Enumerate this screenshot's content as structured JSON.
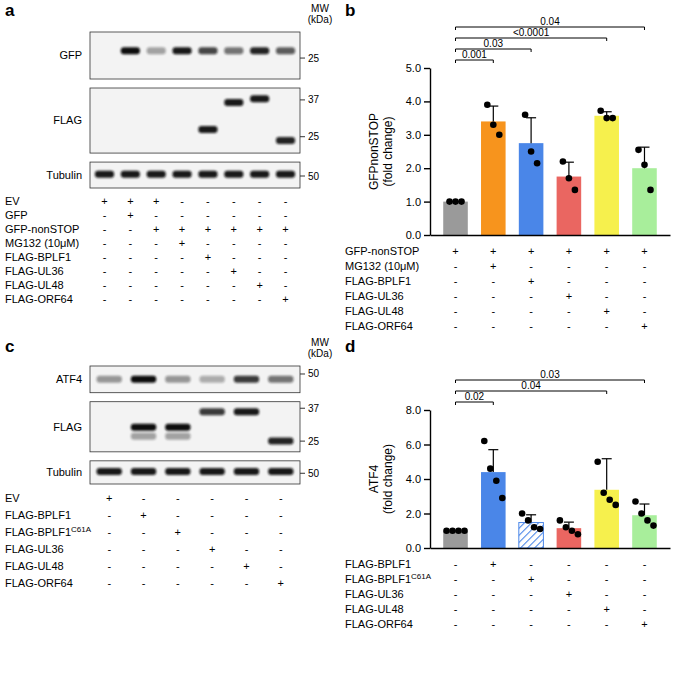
{
  "blots": [
    {
      "title": "a",
      "mw_label": [
        "MW",
        "(kDa)"
      ],
      "strips": [
        {
          "label": "GFP",
          "mw_range": [
            20,
            33
          ],
          "markers": [
            25
          ],
          "bands": [
            {
              "lane": 1,
              "mw": 27,
              "intensity": 1.0
            },
            {
              "lane": 2,
              "mw": 27,
              "intensity": 0.35
            },
            {
              "lane": 3,
              "mw": 27,
              "intensity": 0.95
            },
            {
              "lane": 4,
              "mw": 27,
              "intensity": 0.75
            },
            {
              "lane": 5,
              "mw": 27,
              "intensity": 0.55
            },
            {
              "lane": 6,
              "mw": 27,
              "intensity": 0.9
            },
            {
              "lane": 7,
              "mw": 27,
              "intensity": 0.65
            }
          ]
        },
        {
          "label": "FLAG",
          "mw_range": [
            21,
            42
          ],
          "markers": [
            37,
            25
          ],
          "bands": [
            {
              "lane": 4,
              "mw": 27,
              "intensity": 0.95
            },
            {
              "lane": 5,
              "mw": 36,
              "intensity": 0.95
            },
            {
              "lane": 6,
              "mw": 37.5,
              "intensity": 0.95
            },
            {
              "lane": 7,
              "mw": 24,
              "intensity": 0.9
            }
          ]
        },
        {
          "label": "Tubulin",
          "mw_range": [
            44,
            58
          ],
          "markers": [
            50
          ],
          "bands": [
            {
              "lane": 0,
              "mw": 51,
              "intensity": 0.95
            },
            {
              "lane": 1,
              "mw": 51,
              "intensity": 0.95
            },
            {
              "lane": 2,
              "mw": 51,
              "intensity": 0.95
            },
            {
              "lane": 3,
              "mw": 51,
              "intensity": 0.95
            },
            {
              "lane": 4,
              "mw": 51,
              "intensity": 0.95
            },
            {
              "lane": 5,
              "mw": 51,
              "intensity": 0.95
            },
            {
              "lane": 6,
              "mw": 51,
              "intensity": 0.95
            },
            {
              "lane": 7,
              "mw": 51,
              "intensity": 0.95
            }
          ]
        }
      ],
      "conditions": [
        {
          "label": "EV",
          "signs": [
            "+",
            "+",
            "+",
            "-",
            "-",
            "-",
            "-",
            "-"
          ]
        },
        {
          "label": "GFP",
          "signs": [
            "-",
            "+",
            "-",
            "-",
            "-",
            "-",
            "-",
            "-"
          ]
        },
        {
          "label": "GFP-nonSTOP",
          "signs": [
            "-",
            "-",
            "+",
            "+",
            "+",
            "+",
            "+",
            "+"
          ]
        },
        {
          "label": "MG132 (10μM)",
          "signs": [
            "-",
            "-",
            "-",
            "+",
            "-",
            "-",
            "-",
            "-"
          ]
        },
        {
          "label": "FLAG-BPLF1",
          "signs": [
            "-",
            "-",
            "-",
            "-",
            "+",
            "-",
            "-",
            "-"
          ]
        },
        {
          "label": "FLAG-UL36",
          "signs": [
            "-",
            "-",
            "-",
            "-",
            "-",
            "+",
            "-",
            "-"
          ]
        },
        {
          "label": "FLAG-UL48",
          "signs": [
            "-",
            "-",
            "-",
            "-",
            "-",
            "-",
            "+",
            "-"
          ]
        },
        {
          "label": "FLAG-ORF64",
          "signs": [
            "-",
            "-",
            "-",
            "-",
            "-",
            "-",
            "-",
            "+"
          ]
        }
      ]
    },
    {
      "title": "c",
      "mw_label": [
        "MW",
        "(kDa)"
      ],
      "strips": [
        {
          "label": "ATF4",
          "mw_range": [
            40,
            55
          ],
          "markers": [
            50
          ],
          "bands": [
            {
              "lane": 0,
              "mw": 47,
              "intensity": 0.4
            },
            {
              "lane": 1,
              "mw": 47,
              "intensity": 1.0
            },
            {
              "lane": 2,
              "mw": 47,
              "intensity": 0.4
            },
            {
              "lane": 3,
              "mw": 47,
              "intensity": 0.3
            },
            {
              "lane": 4,
              "mw": 47,
              "intensity": 0.8
            },
            {
              "lane": 5,
              "mw": 47,
              "intensity": 0.55
            }
          ]
        },
        {
          "label": "FLAG",
          "mw_range": [
            22,
            40
          ],
          "markers": [
            37,
            25
          ],
          "bands": [
            {
              "lane": 1,
              "mw": 29.5,
              "intensity": 1.0
            },
            {
              "lane": 1,
              "mw": 26.5,
              "intensity": 0.35
            },
            {
              "lane": 2,
              "mw": 29.5,
              "intensity": 1.0
            },
            {
              "lane": 2,
              "mw": 26.5,
              "intensity": 0.35
            },
            {
              "lane": 3,
              "mw": 35.5,
              "intensity": 0.8
            },
            {
              "lane": 4,
              "mw": 35.5,
              "intensity": 0.95
            },
            {
              "lane": 5,
              "mw": 25,
              "intensity": 0.9
            }
          ]
        },
        {
          "label": "Tubulin",
          "mw_range": [
            44,
            58
          ],
          "markers": [
            50
          ],
          "bands": [
            {
              "lane": 0,
              "mw": 51,
              "intensity": 0.95
            },
            {
              "lane": 1,
              "mw": 51,
              "intensity": 0.95
            },
            {
              "lane": 2,
              "mw": 51,
              "intensity": 0.95
            },
            {
              "lane": 3,
              "mw": 51,
              "intensity": 0.95
            },
            {
              "lane": 4,
              "mw": 51,
              "intensity": 0.95
            },
            {
              "lane": 5,
              "mw": 51,
              "intensity": 0.95
            }
          ]
        }
      ],
      "conditions": [
        {
          "label": "EV",
          "signs": [
            "+",
            "-",
            "-",
            "-",
            "-",
            "-"
          ]
        },
        {
          "label": "FLAG-BPLF1",
          "signs": [
            "-",
            "+",
            "-",
            "-",
            "-",
            "-"
          ]
        },
        {
          "label": "FLAG-BPLF1",
          "sup": "C61A",
          "signs": [
            "-",
            "-",
            "+",
            "-",
            "-",
            "-"
          ]
        },
        {
          "label": "FLAG-UL36",
          "signs": [
            "-",
            "-",
            "-",
            "+",
            "-",
            "-"
          ]
        },
        {
          "label": "FLAG-UL48",
          "signs": [
            "-",
            "-",
            "-",
            "-",
            "+",
            "-"
          ]
        },
        {
          "label": "FLAG-ORF64",
          "signs": [
            "-",
            "-",
            "-",
            "-",
            "-",
            "+"
          ]
        }
      ]
    }
  ],
  "chart_data": [
    {
      "type": "bar",
      "title": "b",
      "categories": [
        null,
        null,
        null,
        null,
        null,
        null
      ],
      "values": [
        1.0,
        3.4,
        2.75,
        1.75,
        3.57,
        2.0
      ],
      "errors": [
        0,
        0.46,
        0.76,
        0.43,
        0.12,
        0.63
      ],
      "points": [
        [
          1,
          1,
          1
        ],
        [
          3.9,
          3.3,
          3.0
        ],
        [
          3.6,
          2.5,
          2.15
        ],
        [
          2.2,
          1.7,
          1.35
        ],
        [
          3.72,
          3.5,
          3.5
        ],
        [
          2.55,
          2.1,
          1.35
        ]
      ],
      "colors": [
        "#9a9a9a",
        "#f7941d",
        "#4a86e8",
        "#ea6661",
        "#f6f04d",
        "#a8ee9b"
      ],
      "y_label": [
        "GFPnonSTOP",
        "(fold change)"
      ],
      "ylim": [
        0,
        5
      ],
      "yticks": [
        {
          "value": 0,
          "label": "0.0"
        },
        {
          "value": 1,
          "label": "1.0"
        },
        {
          "value": 2,
          "label": "2.0"
        },
        {
          "value": 3,
          "label": "3.0"
        },
        {
          "value": 4,
          "label": "4.0"
        },
        {
          "value": 5,
          "label": "5.0"
        }
      ],
      "annotations": [
        {
          "from": 0,
          "to": 1,
          "text": "0.001"
        },
        {
          "from": 0,
          "to": 2,
          "text": "0.03"
        },
        {
          "from": 0,
          "to": 4,
          "text": "<0.0001"
        },
        {
          "from": 0,
          "to": 5,
          "text": "0.04"
        }
      ],
      "conditions": [
        {
          "label": "GFP-nonSTOP",
          "signs": [
            "+",
            "+",
            "+",
            "+",
            "+",
            "+"
          ]
        },
        {
          "label": "MG132 (10μM)",
          "signs": [
            "-",
            "+",
            "-",
            "-",
            "-",
            "-"
          ]
        },
        {
          "label": "FLAG-BPLF1",
          "signs": [
            "-",
            "-",
            "+",
            "-",
            "-",
            "-"
          ]
        },
        {
          "label": "FLAG-UL36",
          "signs": [
            "-",
            "-",
            "-",
            "+",
            "-",
            "-"
          ]
        },
        {
          "label": "FLAG-UL48",
          "signs": [
            "-",
            "-",
            "-",
            "-",
            "+",
            "-"
          ]
        },
        {
          "label": "FLAG-ORF64",
          "signs": [
            "-",
            "-",
            "-",
            "-",
            "-",
            "+"
          ]
        }
      ]
    },
    {
      "type": "bar",
      "title": "d",
      "categories": [
        null,
        null,
        null,
        null,
        null,
        null
      ],
      "values": [
        1.0,
        4.4,
        1.475,
        1.15,
        3.375,
        1.9
      ],
      "errors": [
        0,
        1.3,
        0.45,
        0.35,
        1.8,
        0.65
      ],
      "points": [
        [
          1,
          1,
          1,
          1
        ],
        [
          6.2,
          4.6,
          3.9,
          2.9
        ],
        [
          2.0,
          1.6,
          1.2,
          1.1
        ],
        [
          1.6,
          1.2,
          1.0,
          0.8
        ],
        [
          5.0,
          3.2,
          2.8,
          2.5
        ],
        [
          2.7,
          2.0,
          1.6,
          1.3
        ]
      ],
      "colors": [
        "#9a9a9a",
        "#4a86e8",
        "hatch:#4a86e8",
        "#ea6661",
        "#f6f04d",
        "#a8ee9b"
      ],
      "y_label": [
        "ATF4",
        "(fold change)"
      ],
      "ylim": [
        0,
        8
      ],
      "yticks": [
        {
          "value": 0,
          "label": "0.0"
        },
        {
          "value": 2,
          "label": "2.0"
        },
        {
          "value": 4,
          "label": "4.0"
        },
        {
          "value": 6,
          "label": "6.0"
        },
        {
          "value": 8,
          "label": "8.0"
        }
      ],
      "annotations": [
        {
          "from": 0,
          "to": 1,
          "text": "0.02"
        },
        {
          "from": 0,
          "to": 4,
          "text": "0.04"
        },
        {
          "from": 0,
          "to": 5,
          "text": "0.03"
        }
      ],
      "conditions": [
        {
          "label": "FLAG-BPLF1",
          "signs": [
            "-",
            "+",
            "-",
            "-",
            "-",
            "-"
          ]
        },
        {
          "label": "FLAG-BPLF1",
          "sup": "C61A",
          "signs": [
            "-",
            "-",
            "+",
            "-",
            "-",
            "-"
          ]
        },
        {
          "label": "FLAG-UL36",
          "signs": [
            "-",
            "-",
            "-",
            "+",
            "-",
            "-"
          ]
        },
        {
          "label": "FLAG-UL48",
          "signs": [
            "-",
            "-",
            "-",
            "-",
            "+",
            "-"
          ]
        },
        {
          "label": "FLAG-ORF64",
          "signs": [
            "-",
            "-",
            "-",
            "-",
            "-",
            "+"
          ]
        }
      ]
    }
  ]
}
